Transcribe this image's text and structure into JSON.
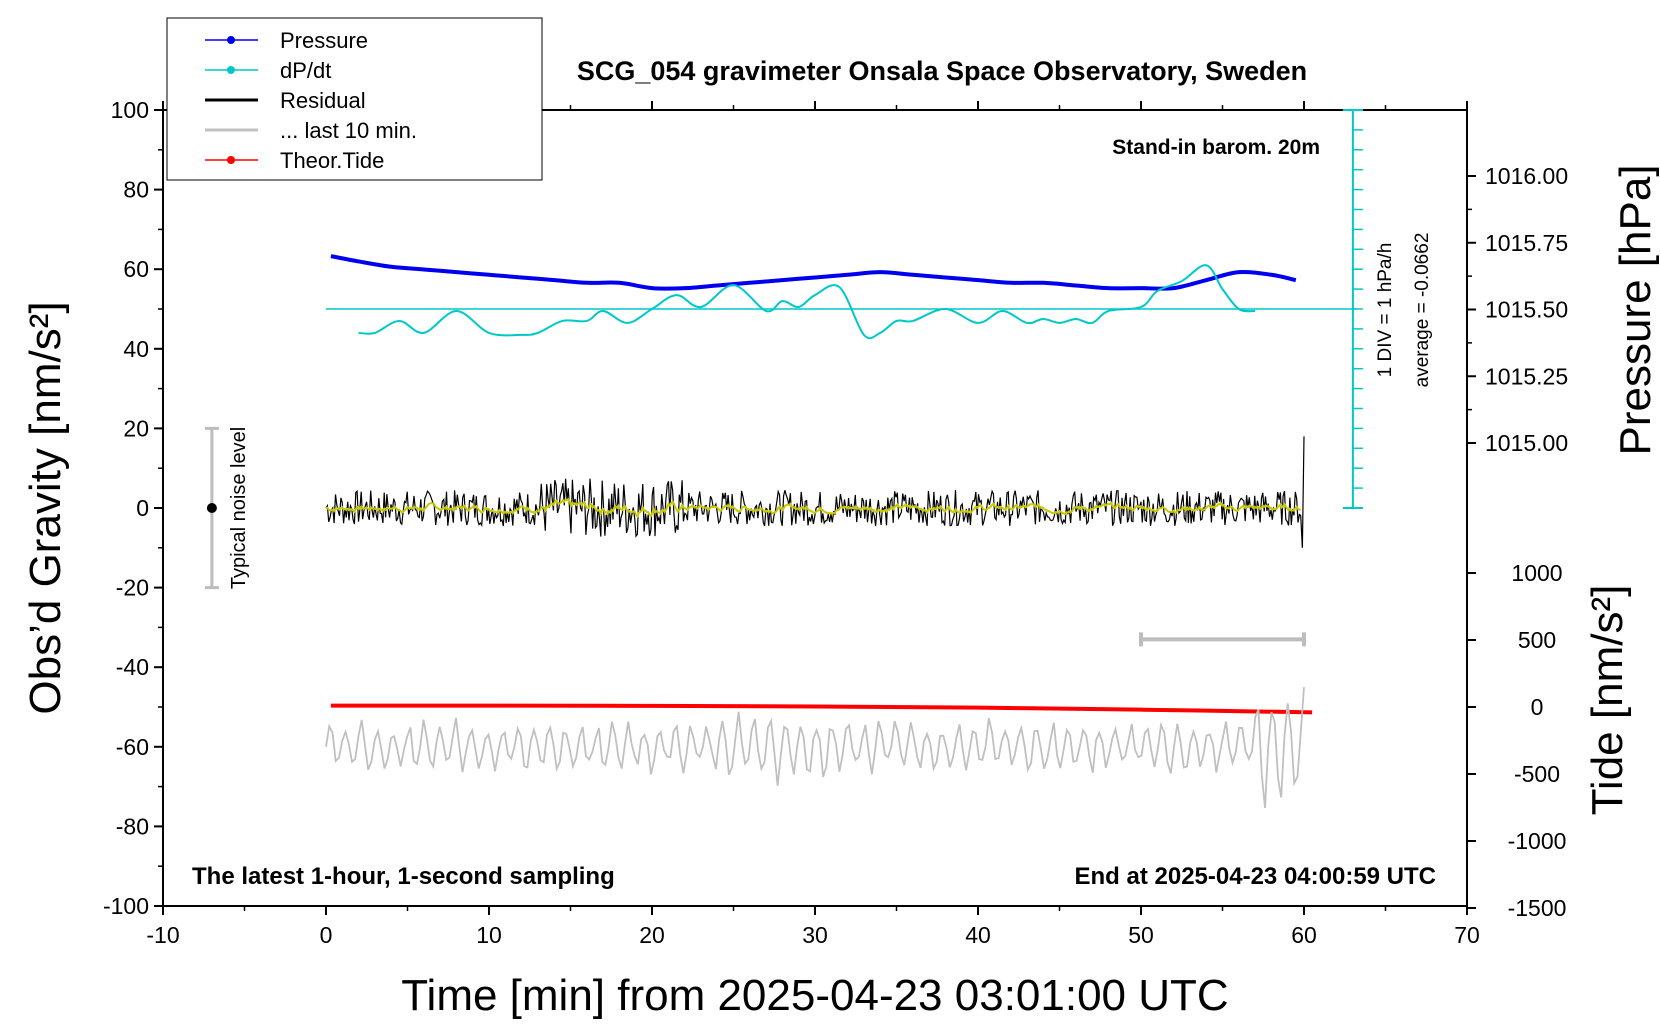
{
  "chart_data": {
    "type": "line",
    "title": "SCG_054 gravimeter Onsala Space Observatory, Sweden",
    "xlabel": "Time [min] from 2025-04-23 03:01:00 UTC",
    "ylabel_left": "Obs’d Gravity [nm/s²]",
    "ylabel_right_top": "Pressure [hPa]",
    "ylabel_right_bottom": "Tide [nm/s²]",
    "xlim": [
      -10,
      70
    ],
    "ylim": [
      -100,
      100
    ],
    "x_ticks": [
      "-10",
      "0",
      "10",
      "20",
      "30",
      "40",
      "50",
      "60",
      "70"
    ],
    "y_ticks": [
      "100",
      "80",
      "60",
      "40",
      "20",
      "0",
      "-20",
      "-40",
      "-60",
      "-80",
      "-100"
    ],
    "pressure_ticks": [
      "1016.00",
      "1015.75",
      "1015.50",
      "1015.25",
      "1015.00"
    ],
    "tide_ticks": [
      "1000",
      "500",
      "0",
      "-500",
      "-1000",
      "-1500"
    ],
    "pressure_range": [
      1014.5,
      1016.5
    ],
    "tide_range": [
      -1500,
      1500
    ],
    "grid": false,
    "legend_position": "top-left",
    "legend": [
      {
        "name": "Pressure",
        "color": "#0000ee",
        "marker": "dot"
      },
      {
        "name": "dP/dt",
        "color": "#00c8c8",
        "marker": "dot"
      },
      {
        "name": "Residual",
        "color": "#000000",
        "marker": "none"
      },
      {
        "name": "... last 10 min.",
        "color": "#c0c0c0",
        "marker": "none"
      },
      {
        "name": "Theor.Tide",
        "color": "#ff0000",
        "marker": "dot"
      }
    ],
    "annotations": {
      "barometer": "Stand-in barom. 20m",
      "dpdt_scale": "1 DIV = 1 hPa/h",
      "dpdt_average": "average = -0.0662",
      "noise": "Typical noise level",
      "footer_left": "The latest 1-hour, 1-second sampling",
      "footer_right": "End at 2025-04-23 04:00:59 UTC"
    },
    "noise_bar": {
      "x": -7,
      "center": 0,
      "half_range": 20
    },
    "last_10min_marker": {
      "x_start": 50,
      "x_end": 60,
      "y": -33
    },
    "dpdt_axis": {
      "x": 63,
      "y_base": 0,
      "y_top": 100,
      "div_step": 5
    },
    "series": [
      {
        "name": "Pressure",
        "unit": "hPa",
        "color": "#0000ee",
        "x": [
          0.3,
          2,
          4,
          6,
          8,
          10,
          12,
          14,
          16,
          18,
          20,
          22,
          24,
          26,
          28,
          30,
          32,
          34,
          36,
          38,
          40,
          42,
          44,
          46,
          48,
          50,
          52,
          54,
          56,
          58,
          59.5
        ],
        "values": [
          1015.7,
          1015.68,
          1015.66,
          1015.65,
          1015.64,
          1015.63,
          1015.62,
          1015.61,
          1015.6,
          1015.6,
          1015.58,
          1015.58,
          1015.59,
          1015.6,
          1015.61,
          1015.62,
          1015.63,
          1015.64,
          1015.63,
          1015.62,
          1015.61,
          1015.6,
          1015.6,
          1015.59,
          1015.58,
          1015.58,
          1015.58,
          1015.61,
          1015.64,
          1015.63,
          1015.61
        ]
      },
      {
        "name": "dP/dt",
        "unit": "nm/s²",
        "color": "#00c8c8",
        "x": [
          2,
          3,
          4.5,
          6,
          8,
          10,
          12,
          13,
          14.5,
          16,
          17,
          18.5,
          20,
          21.5,
          23,
          25,
          27,
          28,
          29,
          30,
          31.5,
          33,
          34,
          35,
          36,
          38,
          40,
          41.5,
          43,
          44,
          45,
          46,
          47,
          48,
          50,
          51,
          52.5,
          54,
          55,
          56,
          57
        ],
        "values": [
          44,
          44,
          47,
          44,
          49.5,
          44,
          43.5,
          44,
          47,
          47,
          49.5,
          46.5,
          50,
          53.5,
          50.5,
          56,
          49.5,
          52,
          50.5,
          53.5,
          55.5,
          43.5,
          44,
          47,
          47,
          50,
          46.5,
          49.5,
          46.5,
          47.5,
          46.5,
          47.5,
          46.5,
          49.5,
          50.5,
          54.5,
          57,
          61,
          55,
          50,
          49.5
        ]
      },
      {
        "name": "Theor.Tide",
        "unit": "nm/s²",
        "color": "#ff0000",
        "x": [
          0.3,
          10,
          20,
          30,
          40,
          50,
          60.5
        ],
        "values": [
          10,
          10,
          8,
          4,
          -5,
          -20,
          -40
        ]
      }
    ]
  }
}
